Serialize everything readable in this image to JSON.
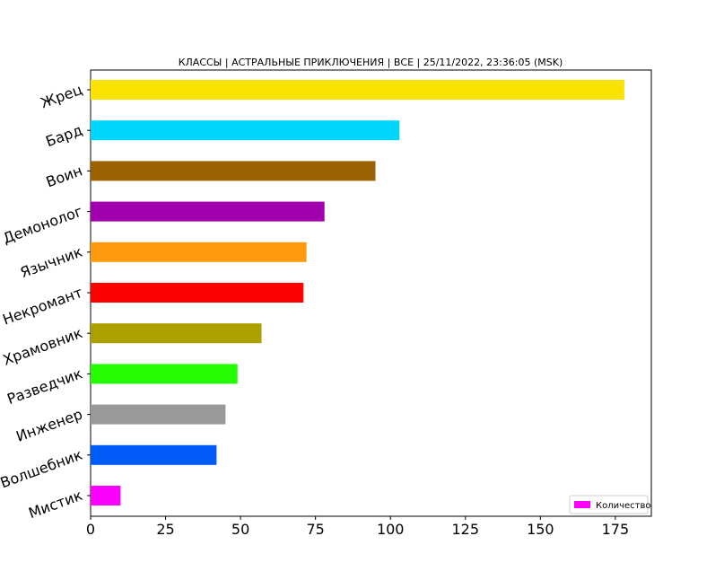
{
  "chart_data": {
    "type": "bar",
    "orientation": "horizontal",
    "title": "КЛАССЫ | АСТРАЛЬНЫЕ ПРИКЛЮЧЕНИЯ | ВСЕ | 25/11/2022, 23:36:05 (MSK)",
    "xlabel": "",
    "ylabel": "",
    "categories": [
      "Жрец",
      "Бард",
      "Воин",
      "Демонолог",
      "Язычник",
      "Некромант",
      "Храмовник",
      "Разведчик",
      "Инженер",
      "Волшебник",
      "Мистик"
    ],
    "series": [
      {
        "name": "Количество",
        "values": [
          178,
          103,
          95,
          78,
          72,
          71,
          57,
          49,
          45,
          42,
          10
        ]
      }
    ],
    "bar_colors": [
      "#f9e200",
      "#00d5fb",
      "#9d6303",
      "#a100ad",
      "#fd9a0b",
      "#fd0000",
      "#aba000",
      "#24fd00",
      "#999999",
      "#005bf9",
      "#fb00fb"
    ],
    "legend_color": "#fb00fb",
    "x_ticks": [
      0,
      25,
      50,
      75,
      100,
      125,
      150,
      175
    ],
    "xlim": [
      0,
      187
    ],
    "grid": false,
    "legend_position": "bottom-right"
  }
}
